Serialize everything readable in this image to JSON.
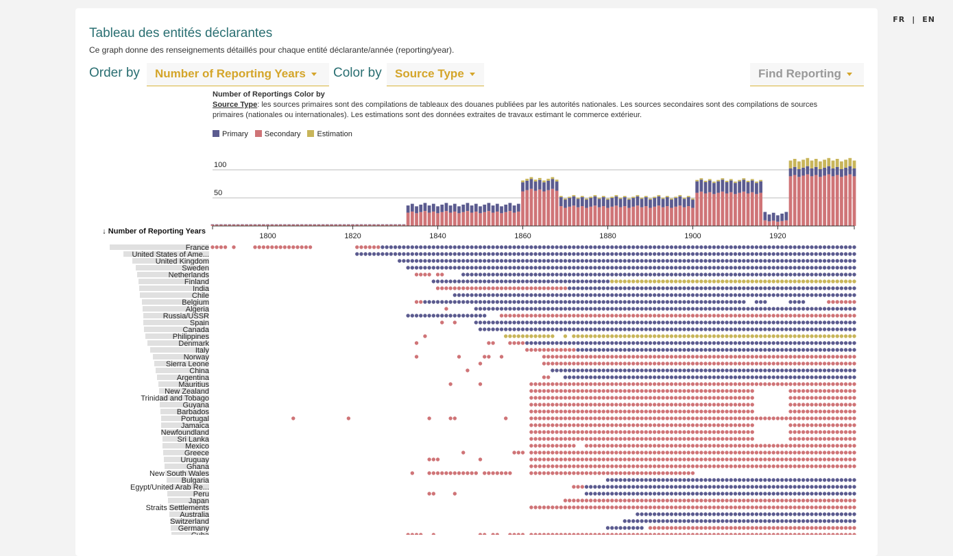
{
  "lang": {
    "fr": "FR",
    "en": "EN"
  },
  "header": {
    "title": "Tableau des entités déclarantes",
    "subtitle": "Ce graph donne des renseignements détaillés pour chaque entité déclarante/année (reporting/year)."
  },
  "controls": {
    "order_label": "Order by",
    "order_value": "Number of Reporting Years",
    "color_label": "Color by",
    "color_value": "Source Type",
    "find_label": "Find Reporting"
  },
  "description": {
    "heading": "Number of Reportings Color by",
    "term": "Source Type",
    "text": ": les sources primaires sont des compilations de tableaux des douanes publiées par les autorités nationales. Les sources secondaires sont des compilations de sources primaires (nationales ou internationales). Les estimations sont des données extraites de travaux estimant le commerce extérieur."
  },
  "colors": {
    "Primary": "#5b5b8f",
    "Secondary": "#cf7477",
    "Estimation": "#c8b55a",
    "bar": "#e0e0e0"
  },
  "chart_data": [
    {
      "type": "bar",
      "title": "",
      "stacked": true,
      "xlim": [
        1787,
        1938
      ],
      "ylim": [
        0,
        120
      ],
      "y_ticks": [
        50,
        100
      ],
      "x_ticks": [
        1800,
        1820,
        1840,
        1860,
        1880,
        1900,
        1920
      ],
      "series_names": [
        "Primary",
        "Secondary",
        "Estimation"
      ],
      "totals_segments": [
        {
          "from": 1787,
          "to": 1832,
          "value": 3
        },
        {
          "from": 1833,
          "to": 1859,
          "value": 38
        },
        {
          "from": 1860,
          "to": 1868,
          "value": 84
        },
        {
          "from": 1869,
          "to": 1900,
          "value": 52
        },
        {
          "from": 1901,
          "to": 1916,
          "value": 82
        },
        {
          "from": 1917,
          "to": 1922,
          "value": 22
        },
        {
          "from": 1923,
          "to": 1938,
          "value": 118
        }
      ]
    },
    {
      "type": "scatter",
      "y_label": "↓ Number of Reporting Years",
      "rows": [
        {
          "name": "France",
          "w": 145,
          "runs": [
            [
              1787,
              1790,
              "S"
            ],
            [
              1792,
              1792,
              "S"
            ],
            [
              1797,
              1810,
              "S"
            ],
            [
              1821,
              1826,
              "S"
            ],
            [
              1827,
              1938,
              "P"
            ]
          ]
        },
        {
          "name": "United States of Ame...",
          "w": 125,
          "runs": [
            [
              1821,
              1938,
              "P"
            ]
          ]
        },
        {
          "name": "United Kingdom",
          "w": 112,
          "runs": [
            [
              1831,
              1938,
              "P"
            ]
          ]
        },
        {
          "name": "Sweden",
          "w": 107,
          "runs": [
            [
              1833,
              1938,
              "P"
            ]
          ]
        },
        {
          "name": "Netherlands",
          "w": 105,
          "runs": [
            [
              1835,
              1838,
              "S"
            ],
            [
              1840,
              1841,
              "S"
            ],
            [
              1846,
              1938,
              "P"
            ]
          ]
        },
        {
          "name": "Finland",
          "w": 103,
          "runs": [
            [
              1839,
              1880,
              "P"
            ],
            [
              1881,
              1938,
              "E"
            ]
          ]
        },
        {
          "name": "India",
          "w": 102,
          "runs": [
            [
              1840,
              1870,
              "S"
            ],
            [
              1871,
              1938,
              "P"
            ]
          ]
        },
        {
          "name": "Chile",
          "w": 101,
          "runs": [
            [
              1844,
              1938,
              "P"
            ]
          ]
        },
        {
          "name": "Belgium",
          "w": 98,
          "runs": [
            [
              1835,
              1836,
              "S"
            ],
            [
              1837,
              1912,
              "P"
            ],
            [
              1915,
              1917,
              "P"
            ],
            [
              1923,
              1926,
              "P"
            ],
            [
              1932,
              1938,
              "S"
            ]
          ]
        },
        {
          "name": "Algeria",
          "w": 97,
          "runs": [
            [
              1842,
              1842,
              "S"
            ],
            [
              1849,
              1938,
              "P"
            ]
          ]
        },
        {
          "name": "Russia/USSR",
          "w": 96,
          "runs": [
            [
              1833,
              1851,
              "P"
            ],
            [
              1855,
              1938,
              "S"
            ]
          ]
        },
        {
          "name": "Spain",
          "w": 96,
          "runs": [
            [
              1841,
              1841,
              "S"
            ],
            [
              1844,
              1844,
              "S"
            ],
            [
              1849,
              1938,
              "P"
            ]
          ]
        },
        {
          "name": "Canada",
          "w": 95,
          "runs": [
            [
              1850,
              1938,
              "P"
            ]
          ]
        },
        {
          "name": "Philippines",
          "w": 93,
          "runs": [
            [
              1837,
              1837,
              "S"
            ],
            [
              1856,
              1867,
              "E"
            ],
            [
              1870,
              1870,
              "E"
            ],
            [
              1872,
              1938,
              "E"
            ]
          ]
        },
        {
          "name": "Denmark",
          "w": 90,
          "runs": [
            [
              1835,
              1835,
              "S"
            ],
            [
              1852,
              1853,
              "S"
            ],
            [
              1857,
              1860,
              "S"
            ],
            [
              1861,
              1938,
              "P"
            ]
          ]
        },
        {
          "name": "Italy",
          "w": 86,
          "runs": [
            [
              1861,
              1872,
              "S"
            ],
            [
              1873,
              1938,
              "P"
            ]
          ]
        },
        {
          "name": "Norway",
          "w": 82,
          "runs": [
            [
              1835,
              1835,
              "S"
            ],
            [
              1845,
              1845,
              "S"
            ],
            [
              1851,
              1852,
              "S"
            ],
            [
              1855,
              1855,
              "S"
            ],
            [
              1865,
              1938,
              "S"
            ]
          ]
        },
        {
          "name": "Sierra Leone",
          "w": 80,
          "runs": [
            [
              1850,
              1850,
              "S"
            ],
            [
              1865,
              1938,
              "S"
            ]
          ]
        },
        {
          "name": "China",
          "w": 78,
          "runs": [
            [
              1847,
              1847,
              "S"
            ],
            [
              1867,
              1938,
              "P"
            ]
          ]
        },
        {
          "name": "Argentina",
          "w": 76,
          "runs": [
            [
              1865,
              1866,
              "S"
            ],
            [
              1870,
              1938,
              "P"
            ]
          ]
        },
        {
          "name": "Mauritius",
          "w": 74,
          "runs": [
            [
              1843,
              1843,
              "S"
            ],
            [
              1850,
              1850,
              "S"
            ],
            [
              1862,
              1938,
              "S"
            ]
          ]
        },
        {
          "name": "New Zealand",
          "w": 73,
          "runs": [
            [
              1862,
              1914,
              "S"
            ],
            [
              1923,
              1938,
              "S"
            ]
          ]
        },
        {
          "name": "Trinidad and Tobago",
          "w": 72,
          "runs": [
            [
              1862,
              1914,
              "S"
            ],
            [
              1923,
              1938,
              "S"
            ]
          ]
        },
        {
          "name": "Guyana",
          "w": 72,
          "runs": [
            [
              1862,
              1914,
              "S"
            ],
            [
              1923,
              1938,
              "S"
            ]
          ]
        },
        {
          "name": "Barbados",
          "w": 71,
          "runs": [
            [
              1862,
              1914,
              "S"
            ],
            [
              1923,
              1938,
              "S"
            ]
          ]
        },
        {
          "name": "Portugal",
          "w": 70,
          "runs": [
            [
              1806,
              1806,
              "S"
            ],
            [
              1819,
              1819,
              "S"
            ],
            [
              1838,
              1838,
              "S"
            ],
            [
              1843,
              1844,
              "S"
            ],
            [
              1856,
              1856,
              "S"
            ],
            [
              1862,
              1938,
              "S"
            ]
          ]
        },
        {
          "name": "Jamaica",
          "w": 70,
          "runs": [
            [
              1862,
              1914,
              "S"
            ],
            [
              1923,
              1938,
              "S"
            ]
          ]
        },
        {
          "name": "Newfoundland",
          "w": 69,
          "runs": [
            [
              1862,
              1914,
              "S"
            ],
            [
              1923,
              1938,
              "S"
            ]
          ]
        },
        {
          "name": "Sri Lanka",
          "w": 68,
          "runs": [
            [
              1862,
              1914,
              "S"
            ],
            [
              1923,
              1938,
              "S"
            ]
          ]
        },
        {
          "name": "Mexico",
          "w": 68,
          "runs": [
            [
              1862,
              1872,
              "S"
            ],
            [
              1875,
              1938,
              "S"
            ]
          ]
        },
        {
          "name": "Greece",
          "w": 67,
          "runs": [
            [
              1846,
              1846,
              "S"
            ],
            [
              1858,
              1860,
              "S"
            ],
            [
              1862,
              1938,
              "S"
            ]
          ]
        },
        {
          "name": "Uruguay",
          "w": 66,
          "runs": [
            [
              1838,
              1840,
              "S"
            ],
            [
              1850,
              1850,
              "S"
            ],
            [
              1862,
              1938,
              "S"
            ]
          ]
        },
        {
          "name": "Ghana",
          "w": 65,
          "runs": [
            [
              1862,
              1938,
              "S"
            ]
          ]
        },
        {
          "name": "New South Wales",
          "w": 64,
          "runs": [
            [
              1834,
              1834,
              "S"
            ],
            [
              1838,
              1849,
              "S"
            ],
            [
              1851,
              1857,
              "S"
            ],
            [
              1862,
              1900,
              "S"
            ]
          ]
        },
        {
          "name": "Bulgaria",
          "w": 62,
          "runs": [
            [
              1880,
              1938,
              "P"
            ]
          ]
        },
        {
          "name": "Egypt/United Arab Re...",
          "w": 62,
          "runs": [
            [
              1872,
              1874,
              "S"
            ],
            [
              1875,
              1938,
              "P"
            ]
          ]
        },
        {
          "name": "Peru",
          "w": 61,
          "runs": [
            [
              1838,
              1839,
              "S"
            ],
            [
              1844,
              1844,
              "S"
            ],
            [
              1875,
              1938,
              "P"
            ]
          ]
        },
        {
          "name": "Japan",
          "w": 60,
          "runs": [
            [
              1870,
              1938,
              "S"
            ]
          ]
        },
        {
          "name": "Straits Settlements",
          "w": 59,
          "runs": [
            [
              1862,
              1938,
              "S"
            ]
          ]
        },
        {
          "name": "Australia",
          "w": 58,
          "runs": [
            [
              1887,
              1938,
              "P"
            ]
          ]
        },
        {
          "name": "Switzerland",
          "w": 57,
          "runs": [
            [
              1884,
              1938,
              "P"
            ]
          ]
        },
        {
          "name": "Germany",
          "w": 56,
          "runs": [
            [
              1880,
              1888,
              "P"
            ],
            [
              1890,
              1938,
              "S"
            ]
          ]
        },
        {
          "name": "Cuba",
          "w": 55,
          "runs": [
            [
              1833,
              1836,
              "S"
            ],
            [
              1839,
              1839,
              "S"
            ],
            [
              1850,
              1851,
              "S"
            ],
            [
              1853,
              1854,
              "S"
            ],
            [
              1857,
              1860,
              "S"
            ],
            [
              1862,
              1938,
              "S"
            ]
          ]
        }
      ]
    }
  ]
}
